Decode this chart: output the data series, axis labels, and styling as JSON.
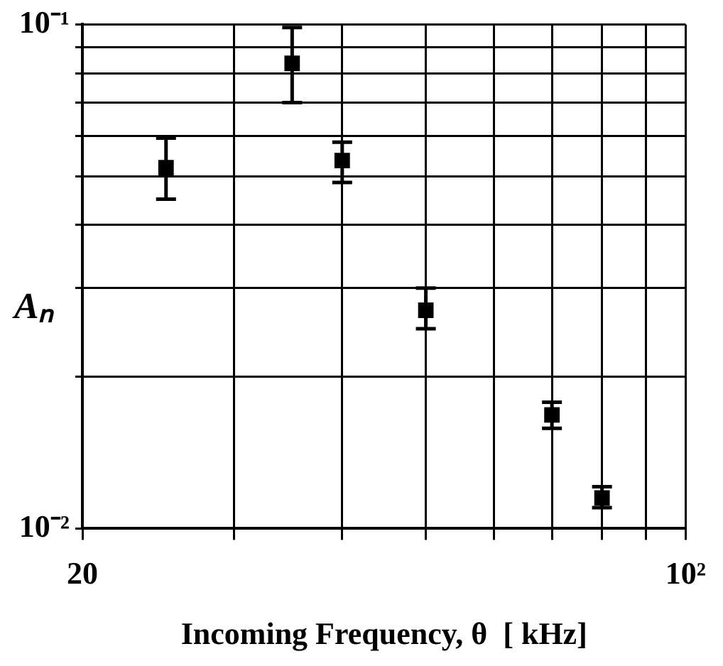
{
  "chart_data": {
    "type": "scatter",
    "xlabel": "Incoming Frequency, θ  [ kHz]",
    "ylabel": "Aₙ",
    "log": "xy",
    "grid": true,
    "marker": "square",
    "x": [
      25,
      35,
      40,
      50,
      70,
      80
    ],
    "series": [
      {
        "color": "#000000",
        "values": [
          0.052,
          0.0837,
          0.0537,
          0.0271,
          0.0168,
          0.0115
        ],
        "errors": [
          [
            0.045,
            0.0595
          ],
          [
            0.07,
            0.0986
          ],
          [
            0.0486,
            0.0584
          ],
          [
            0.0249,
            0.03
          ],
          [
            0.0158,
            0.0178
          ],
          [
            0.011,
            0.0121
          ]
        ]
      }
    ],
    "xlim": [
      20,
      100
    ],
    "xticks": [
      {
        "value": 20,
        "label": "20"
      },
      {
        "value": 30,
        "label": null
      },
      {
        "value": 40,
        "label": null
      },
      {
        "value": 50,
        "label": null
      },
      {
        "value": 60,
        "label": null
      },
      {
        "value": 70,
        "label": null
      },
      {
        "value": 80,
        "label": null
      },
      {
        "value": 90,
        "label": null
      },
      {
        "value": 100,
        "label": "10²"
      }
    ],
    "ylim": [
      0.01,
      0.1
    ],
    "yticks": [
      {
        "value": 0.01,
        "label": "10⁻²"
      },
      {
        "value": 0.02,
        "label": null
      },
      {
        "value": 0.03,
        "label": null
      },
      {
        "value": 0.04,
        "label": null
      },
      {
        "value": 0.05,
        "label": null
      },
      {
        "value": 0.06,
        "label": null
      },
      {
        "value": 0.07,
        "label": null
      },
      {
        "value": 0.08,
        "label": null
      },
      {
        "value": 0.09,
        "label": null
      },
      {
        "value": 0.1,
        "label": "10⁻¹"
      }
    ]
  }
}
